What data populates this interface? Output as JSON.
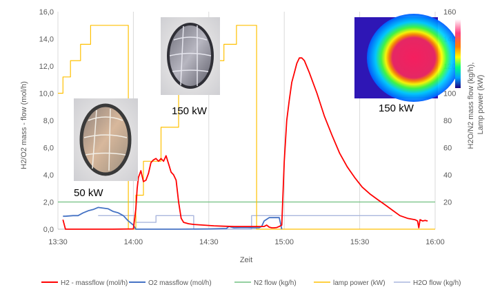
{
  "chart_data": {
    "type": "line",
    "xlabel": "Zeit",
    "ylabel_left": "H2/O2 mass - flow (mol/h)",
    "ylabel_right": [
      "H2O/N2 mass flow (kg/h),",
      "Lamp power (kW)"
    ],
    "x_ticks": [
      "13:30",
      "14:00",
      "14:30",
      "15:00",
      "15:30",
      "16:00"
    ],
    "x_range_min": [
      810,
      960
    ],
    "y_left_range": [
      0,
      16
    ],
    "y_left_ticks": [
      "0,0",
      "2,0",
      "4,0",
      "6,0",
      "8,0",
      "10,0",
      "12,0",
      "14,0",
      "16,0"
    ],
    "y_right_range": [
      0,
      160
    ],
    "y_right_ticks": [
      "20",
      "40",
      "60",
      "80",
      "100",
      "120",
      "140",
      "160"
    ],
    "grid": "vertical",
    "legend_position": "bottom",
    "annotations": [
      {
        "text": "50 kW"
      },
      {
        "text": "150 kW"
      },
      {
        "text": "150 kW"
      }
    ],
    "series": [
      {
        "name": "H2 - massflow (mol/h)",
        "axis": "left",
        "color": "#ff0000",
        "x": [
          812,
          813,
          832,
          840,
          841,
          841.5,
          842,
          843,
          844,
          845,
          846,
          847,
          848,
          849,
          850,
          851,
          852,
          853,
          854,
          855,
          856,
          857,
          858,
          859,
          860,
          862,
          864,
          868,
          872,
          876,
          880,
          884,
          888,
          891,
          892,
          893,
          894,
          895,
          896,
          897,
          898,
          899,
          900,
          901,
          902,
          903,
          904,
          905,
          906,
          907,
          908,
          910,
          913,
          916,
          919,
          922,
          925,
          928,
          931,
          934,
          937,
          940,
          943,
          946,
          949,
          952,
          953,
          953.5,
          954,
          955,
          956,
          957
        ],
        "y": [
          0.7,
          0.0,
          0.0,
          0.02,
          1.5,
          3.0,
          3.8,
          4.3,
          3.5,
          3.6,
          4.1,
          4.9,
          5.1,
          5.2,
          5.0,
          5.2,
          5.0,
          5.4,
          4.8,
          4.2,
          4.0,
          3.6,
          2.0,
          0.8,
          0.5,
          0.4,
          0.35,
          0.3,
          0.25,
          0.22,
          0.2,
          0.2,
          0.2,
          0.2,
          0.2,
          0.3,
          0.15,
          0.1,
          0.1,
          0.12,
          0.2,
          0.3,
          5.0,
          8.0,
          9.5,
          10.8,
          11.5,
          12.2,
          12.6,
          12.6,
          12.4,
          11.5,
          10.0,
          8.3,
          6.9,
          5.6,
          4.6,
          3.8,
          3.1,
          2.6,
          2.2,
          1.8,
          1.4,
          1.0,
          0.8,
          0.7,
          0.6,
          0.1,
          0.7,
          0.6,
          0.65,
          0.6
        ]
      },
      {
        "name": "O2  massflow (mol/h)",
        "axis": "left",
        "color": "#4472c4",
        "x": [
          812,
          813,
          816,
          818,
          820,
          822,
          824,
          826,
          828,
          830,
          832,
          834,
          836,
          838,
          840,
          841,
          842,
          843,
          858,
          870,
          877,
          878,
          880,
          884,
          888,
          890,
          891,
          892,
          894,
          896,
          898,
          899
        ],
        "y": [
          0.95,
          0.95,
          1.0,
          1.0,
          1.2,
          1.35,
          1.45,
          1.6,
          1.55,
          1.5,
          1.3,
          1.2,
          1.0,
          0.6,
          0.3,
          0.0,
          0.0,
          0.0,
          0.0,
          0.02,
          0.05,
          0.2,
          0.1,
          0.12,
          0.1,
          0.1,
          0.2,
          0.6,
          0.85,
          0.85,
          0.85,
          0.0
        ]
      },
      {
        "name": "N2 flow (kg/h)",
        "axis": "right",
        "color": "#70c080",
        "x": [
          810,
          960
        ],
        "y": [
          20,
          20
        ]
      },
      {
        "name": "lamp power (kW)",
        "axis": "right",
        "color": "#ffc000",
        "x": [
          810,
          812,
          812,
          815,
          815,
          819,
          819,
          823,
          823,
          830,
          830,
          838,
          838,
          839,
          839,
          841,
          841,
          844,
          844,
          851,
          851,
          858,
          858,
          865,
          865,
          872,
          872,
          876,
          876,
          881,
          881,
          888,
          888,
          889,
          889,
          960
        ],
        "y": [
          100,
          100,
          112,
          112,
          124,
          124,
          136,
          136,
          150,
          150,
          150,
          150,
          0,
          0,
          0,
          0,
          25,
          25,
          50,
          50,
          75,
          75,
          100,
          100,
          112,
          112,
          124,
          124,
          136,
          136,
          150,
          150,
          150,
          150,
          0,
          0
        ]
      },
      {
        "name": "H2O flow (kg/h)",
        "axis": "right",
        "color": "#a9b6de",
        "x": [
          826,
          841,
          841,
          843,
          843,
          849,
          849,
          864,
          864,
          877,
          877,
          887,
          887,
          943
        ],
        "y": [
          10,
          10,
          5,
          5,
          5,
          5,
          10,
          10,
          0,
          0,
          0,
          0,
          10,
          10
        ]
      }
    ]
  }
}
